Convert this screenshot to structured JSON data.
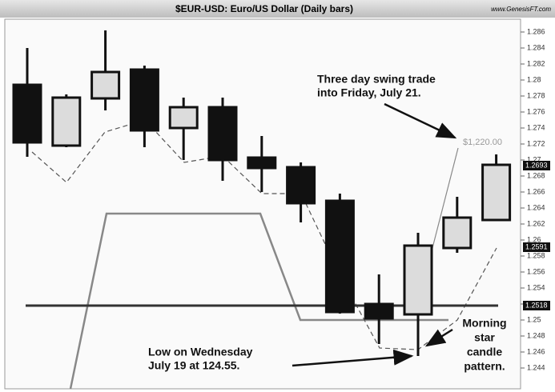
{
  "chart_data": {
    "type": "candlestick",
    "title": "$EUR-USD:  Euro/US Dollar  (Daily bars)",
    "source": "www.GenesisFT.com",
    "categories": [
      null,
      null,
      null,
      null,
      null,
      null,
      null,
      null,
      null,
      null,
      null,
      null,
      null
    ],
    "open": [
      1.2794,
      1.2718,
      1.2777,
      1.2813,
      1.274,
      1.2766,
      1.2703,
      1.2691,
      1.2649,
      1.252,
      1.2507,
      1.259,
      1.2625
    ],
    "high": [
      1.284,
      1.2782,
      1.2862,
      1.2818,
      1.2778,
      1.2778,
      1.273,
      1.2697,
      1.2658,
      1.2557,
      1.2609,
      1.2654,
      1.2707
    ],
    "low": [
      1.2704,
      1.2716,
      1.2762,
      1.2716,
      1.27,
      1.2674,
      1.266,
      1.2622,
      1.2508,
      1.247,
      1.2455,
      1.2584,
      1.2624
    ],
    "close": [
      1.2722,
      1.2778,
      1.281,
      1.2737,
      1.2766,
      1.27,
      1.269,
      1.2646,
      1.251,
      1.2502,
      1.2593,
      1.2628,
      1.2694
    ],
    "up_color": "#dcdcdc",
    "down_color": "#111111",
    "ylim": [
      1.2415,
      1.2875
    ],
    "yticks": [
      1.244,
      1.246,
      1.248,
      1.25,
      1.252,
      1.254,
      1.256,
      1.258,
      1.26,
      1.262,
      1.264,
      1.266,
      1.268,
      1.27,
      1.272,
      1.274,
      1.276,
      1.278,
      1.28,
      1.282,
      1.284,
      1.286
    ],
    "price_labels": [
      1.2693,
      1.2591,
      1.2518
    ],
    "support_line": 1.2518,
    "annotations": {
      "target": "$1,220.00",
      "swing": [
        "Three day swing trade",
        "into Friday, July 21."
      ],
      "low": [
        "Low on Wednesday",
        "July 19 at 124.55."
      ],
      "pattern": [
        "Morning",
        "star",
        "candle",
        "pattern."
      ]
    }
  }
}
